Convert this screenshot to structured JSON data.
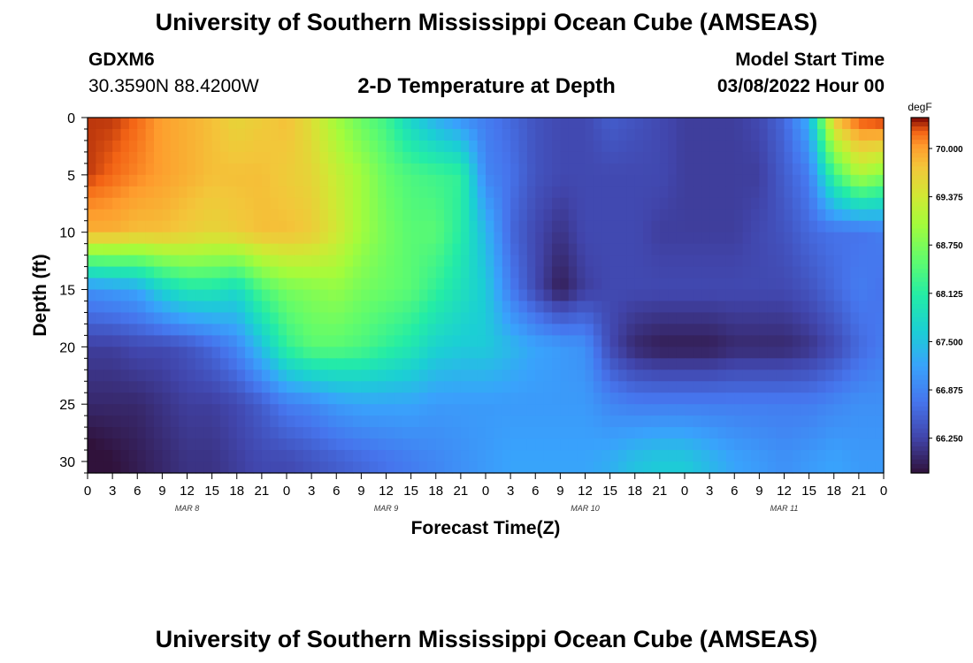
{
  "header": {
    "title": "University of Southern Mississippi Ocean Cube (AMSEAS)",
    "station_id": "GDXM6",
    "station_coords": "30.3590N  88.4200W",
    "subtitle": "2-D Temperature at Depth",
    "model_start_label": "Model Start Time",
    "model_start_value": "03/08/2022 Hour 00"
  },
  "footer": {
    "title_repeat": "University of Southern Mississippi Ocean Cube (AMSEAS)"
  },
  "chart_data": {
    "type": "heatmap",
    "xlabel": "Forecast Time(Z)",
    "ylabel": "Depth (ft)",
    "x_hours_range": [
      0,
      96
    ],
    "x_tick_labels": [
      "0",
      "3",
      "6",
      "9",
      "12",
      "15",
      "18",
      "21",
      "0",
      "3",
      "6",
      "9",
      "12",
      "15",
      "18",
      "21",
      "0",
      "3",
      "6",
      "9",
      "12",
      "15",
      "18",
      "21",
      "0",
      "3",
      "6",
      "9",
      "12",
      "15",
      "18",
      "21",
      "0"
    ],
    "x_day_labels": [
      "MAR 8",
      "MAR 9",
      "MAR 10",
      "MAR 11"
    ],
    "ylim": [
      0,
      31
    ],
    "y_inverted": true,
    "y_tick_labels": [
      "0",
      "5",
      "10",
      "15",
      "20",
      "25",
      "30"
    ],
    "y_ticks": [
      0,
      5,
      10,
      15,
      20,
      25,
      30
    ],
    "colorbar": {
      "unit": "degF",
      "min": 65.8,
      "max": 70.4,
      "tick_values": [
        70.0,
        69.375,
        68.75,
        68.125,
        67.5,
        66.875,
        66.25
      ],
      "tick_labels": [
        "70.000",
        "69.375",
        "68.750",
        "68.125",
        "67.500",
        "66.875",
        "66.250"
      ]
    },
    "depths_ft": [
      0,
      5,
      10,
      15,
      20,
      25,
      30
    ],
    "times_hr": [
      0,
      3,
      6,
      9,
      12,
      15,
      18,
      21,
      24,
      27,
      30,
      33,
      36,
      39,
      42,
      45,
      48,
      51,
      54,
      57,
      60,
      63,
      66,
      69,
      72,
      75,
      78,
      81,
      84,
      87,
      90,
      93,
      96
    ],
    "temperature_degF": [
      [
        70.3,
        70.3,
        70.2,
        70.0,
        69.9,
        69.8,
        69.6,
        69.7,
        69.8,
        69.5,
        69.0,
        68.6,
        68.3,
        67.7,
        67.3,
        67.0,
        66.8,
        66.6,
        66.4,
        66.3,
        66.3,
        66.5,
        66.4,
        66.3,
        66.2,
        66.2,
        66.2,
        66.3,
        66.6,
        67.3,
        69.8,
        70.3,
        70.4
      ],
      [
        70.3,
        70.2,
        70.1,
        70.0,
        69.9,
        69.8,
        69.8,
        69.8,
        69.7,
        69.6,
        69.3,
        69.0,
        68.6,
        68.4,
        68.3,
        68.2,
        66.9,
        66.7,
        66.4,
        66.3,
        66.3,
        66.3,
        66.3,
        66.3,
        66.2,
        66.2,
        66.2,
        66.2,
        66.5,
        66.8,
        68.3,
        69.1,
        68.8
      ],
      [
        69.9,
        69.9,
        69.8,
        69.8,
        69.7,
        69.6,
        69.7,
        69.8,
        69.8,
        69.7,
        69.4,
        69.0,
        68.7,
        68.5,
        68.5,
        68.1,
        67.4,
        66.6,
        66.3,
        66.1,
        66.3,
        66.3,
        66.3,
        66.2,
        66.2,
        66.2,
        66.2,
        66.3,
        66.4,
        66.6,
        66.7,
        66.7,
        66.8
      ],
      [
        67.0,
        67.1,
        67.2,
        67.7,
        68.0,
        68.0,
        67.8,
        68.4,
        68.7,
        68.8,
        68.9,
        68.7,
        68.6,
        68.5,
        68.2,
        67.9,
        67.6,
        66.8,
        66.3,
        65.9,
        66.2,
        66.3,
        66.3,
        66.3,
        66.3,
        66.3,
        66.3,
        66.3,
        66.3,
        66.4,
        66.6,
        66.8,
        66.7
      ],
      [
        66.2,
        66.2,
        66.3,
        66.3,
        66.4,
        66.6,
        66.9,
        67.5,
        68.2,
        68.5,
        68.5,
        68.4,
        68.2,
        68.0,
        67.7,
        67.6,
        67.6,
        67.4,
        67.2,
        67.1,
        67.0,
        66.3,
        66.0,
        65.9,
        65.9,
        65.9,
        66.0,
        66.0,
        66.0,
        66.1,
        66.3,
        66.6,
        66.8
      ],
      [
        66.0,
        66.0,
        66.0,
        66.1,
        66.2,
        66.2,
        66.3,
        66.5,
        66.8,
        66.9,
        67.1,
        67.2,
        67.2,
        67.2,
        67.1,
        67.1,
        67.1,
        67.1,
        67.1,
        67.1,
        67.1,
        66.9,
        66.8,
        66.8,
        66.8,
        66.8,
        66.8,
        66.8,
        66.8,
        66.8,
        66.9,
        67.0,
        67.0
      ],
      [
        65.7,
        65.8,
        65.9,
        66.0,
        66.1,
        66.1,
        66.2,
        66.3,
        66.3,
        66.4,
        66.5,
        66.6,
        66.7,
        66.8,
        66.9,
        67.0,
        67.1,
        67.2,
        67.2,
        67.2,
        67.2,
        67.3,
        67.5,
        67.6,
        67.6,
        67.4,
        67.2,
        67.1,
        67.0,
        67.1,
        67.2,
        67.1,
        67.1
      ]
    ]
  }
}
